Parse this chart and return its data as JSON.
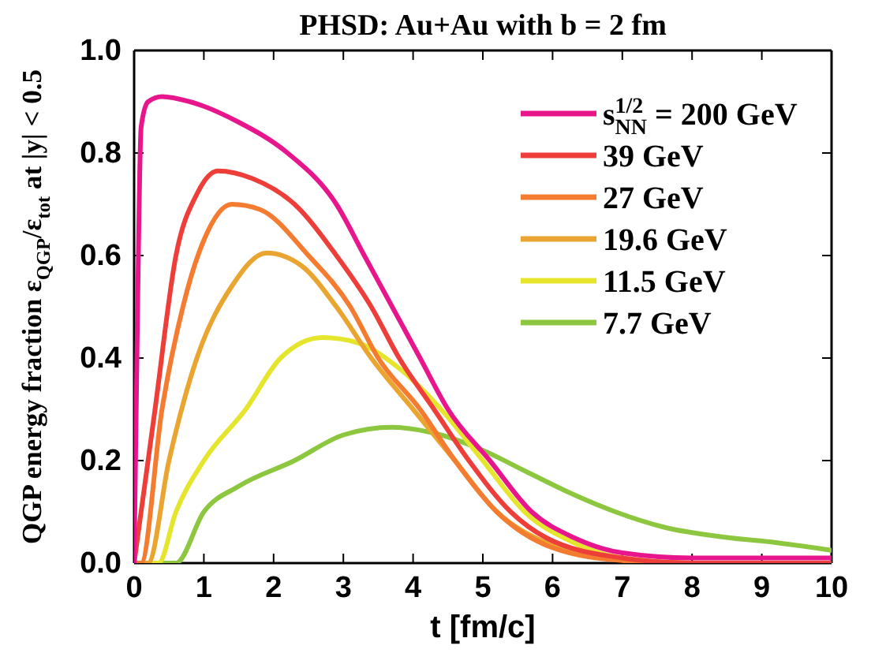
{
  "chart_data": {
    "type": "line",
    "title": "PHSD: Au+Au with b = 2 fm",
    "xlabel": "t [fm/c]",
    "ylabel": "QGP energy fraction ε$_{QGP}$/ε$_{tot}$ at |y| < 0.5",
    "xlim": [
      0,
      10
    ],
    "xticks": [
      0,
      1,
      2,
      3,
      4,
      5,
      6,
      7,
      8,
      9,
      10
    ],
    "ylim": [
      0,
      1
    ],
    "yticks": [
      {
        "value": 0,
        "label": "0.0"
      },
      0.2,
      0.4,
      0.6,
      0.8,
      {
        "value": 1,
        "label": "1.0"
      }
    ],
    "legend": "top right",
    "grid": false,
    "marker": "none",
    "line_style": "solid",
    "series": [
      {
        "name": "s$^{1/2}$$_{NN}$ = 200 GeV",
        "color": "#e8168c",
        "x": [
          0,
          0.05,
          0.1,
          0.2,
          0.4,
          0.8,
          1.5,
          2.2,
          2.9,
          3.3,
          3.7,
          4.1,
          4.5,
          5.1,
          5.7,
          6.3,
          7,
          8,
          10
        ],
        "values": [
          0,
          0.5,
          0.85,
          0.9,
          0.91,
          0.9,
          0.86,
          0.8,
          0.7,
          0.6,
          0.5,
          0.4,
          0.3,
          0.2,
          0.1,
          0.05,
          0.02,
          0.01,
          0.01
        ]
      },
      {
        "name": "39 GeV",
        "color": "#ee3e3a",
        "x": [
          0,
          0.3,
          0.6,
          0.9,
          1.2,
          1.7,
          2.3,
          2.9,
          3.4,
          3.8,
          4.3,
          4.8,
          5.4,
          5.9,
          7,
          8,
          10
        ],
        "values": [
          0,
          0.3,
          0.6,
          0.72,
          0.765,
          0.75,
          0.7,
          0.6,
          0.5,
          0.4,
          0.3,
          0.2,
          0.1,
          0.05,
          0.01,
          0,
          0
        ]
      },
      {
        "name": "27 GeV",
        "color": "#f47c30",
        "x": [
          0,
          0.1,
          0.4,
          0.7,
          1.0,
          1.4,
          1.8,
          2.5,
          3.1,
          3.5,
          4.1,
          4.6,
          5.2,
          6,
          7,
          8,
          10
        ],
        "values": [
          0,
          0,
          0.3,
          0.5,
          0.63,
          0.7,
          0.69,
          0.6,
          0.5,
          0.4,
          0.3,
          0.2,
          0.1,
          0.03,
          0.005,
          0,
          0
        ]
      },
      {
        "name": "19.6 GeV",
        "color": "#eaa530",
        "x": [
          0,
          0.2,
          0.5,
          0.9,
          1.4,
          1.9,
          2.4,
          2.9,
          3.4,
          4.0,
          4.6,
          5.2,
          5.9,
          6.7,
          8,
          10
        ],
        "values": [
          0,
          0,
          0.2,
          0.4,
          0.54,
          0.605,
          0.58,
          0.5,
          0.4,
          0.3,
          0.2,
          0.1,
          0.04,
          0.01,
          0,
          0
        ]
      },
      {
        "name": "11.5 GeV",
        "color": "#e6e52e",
        "x": [
          0,
          0.35,
          0.6,
          1.0,
          1.6,
          2.1,
          2.7,
          3.2,
          3.8,
          4.4,
          5.0,
          5.6,
          6.3,
          7,
          8,
          10
        ],
        "values": [
          0,
          0,
          0.1,
          0.2,
          0.3,
          0.4,
          0.44,
          0.43,
          0.38,
          0.3,
          0.2,
          0.1,
          0.04,
          0.01,
          0,
          0
        ]
      },
      {
        "name": "7.7 GeV",
        "color": "#8dc63f",
        "x": [
          0,
          0.6,
          1.0,
          1.5,
          2.3,
          3.0,
          3.7,
          4.4,
          5.0,
          5.6,
          6.2,
          6.9,
          7.6,
          8.5,
          9.2,
          10
        ],
        "values": [
          0,
          0,
          0.1,
          0.15,
          0.2,
          0.25,
          0.265,
          0.25,
          0.22,
          0.18,
          0.14,
          0.1,
          0.07,
          0.05,
          0.04,
          0.025
        ]
      }
    ]
  }
}
